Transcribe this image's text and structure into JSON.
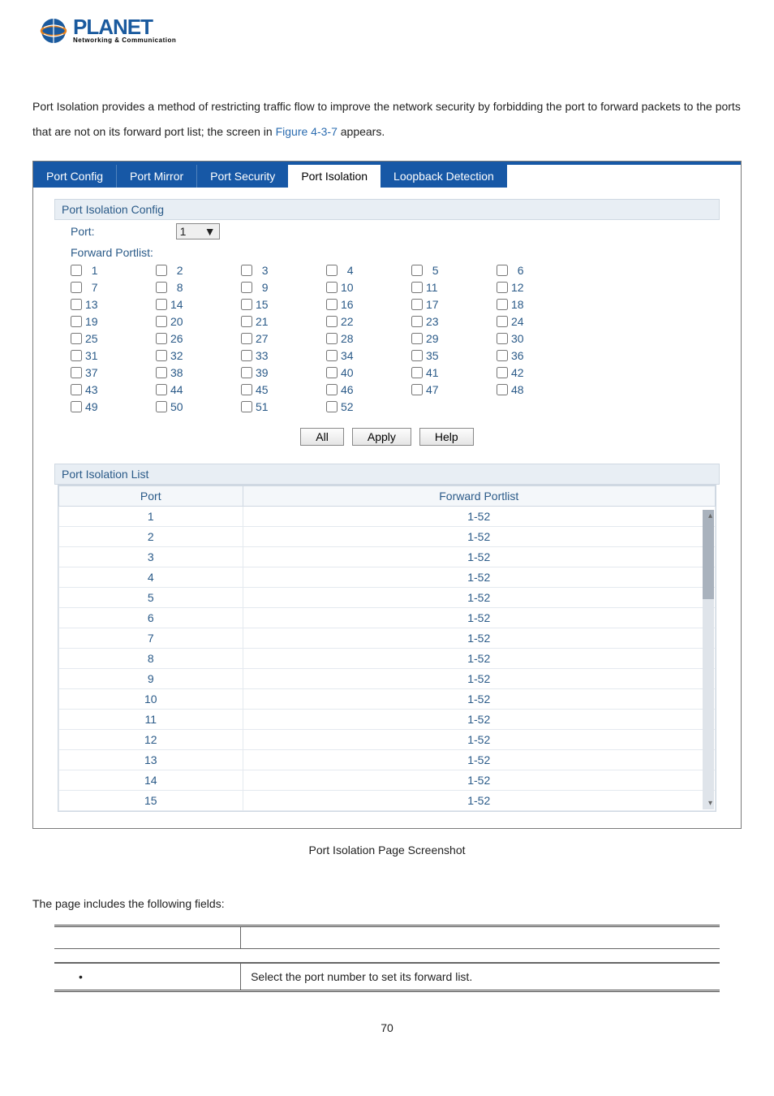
{
  "logo": {
    "title": "PLANET",
    "subtitle": "Networking & Communication"
  },
  "intro": {
    "text1": "Port Isolation provides a method of restricting traffic flow to improve the network security by forbidding the port to forward packets to the ports that are not on its forward port list; the screen in ",
    "figure": "Figure 4-3-7",
    "text2": " appears."
  },
  "tabs": {
    "items": [
      {
        "label": "Port Config",
        "active": false
      },
      {
        "label": "Port Mirror",
        "active": false
      },
      {
        "label": "Port Security",
        "active": false
      },
      {
        "label": "Port Isolation",
        "active": true
      },
      {
        "label": "Loopback Detection",
        "active": false
      }
    ]
  },
  "config": {
    "section_title": "Port Isolation Config",
    "port_label": "Port:",
    "port_value": "1",
    "forward_label": "Forward Portlist:",
    "port_count": 52,
    "buttons": {
      "all": "All",
      "apply": "Apply",
      "help": "Help"
    }
  },
  "list": {
    "section_title": "Port Isolation List",
    "headers": {
      "port": "Port",
      "fwd": "Forward Portlist"
    },
    "rows": [
      {
        "port": "1",
        "fwd": "1-52"
      },
      {
        "port": "2",
        "fwd": "1-52"
      },
      {
        "port": "3",
        "fwd": "1-52"
      },
      {
        "port": "4",
        "fwd": "1-52"
      },
      {
        "port": "5",
        "fwd": "1-52"
      },
      {
        "port": "6",
        "fwd": "1-52"
      },
      {
        "port": "7",
        "fwd": "1-52"
      },
      {
        "port": "8",
        "fwd": "1-52"
      },
      {
        "port": "9",
        "fwd": "1-52"
      },
      {
        "port": "10",
        "fwd": "1-52"
      },
      {
        "port": "11",
        "fwd": "1-52"
      },
      {
        "port": "12",
        "fwd": "1-52"
      },
      {
        "port": "13",
        "fwd": "1-52"
      },
      {
        "port": "14",
        "fwd": "1-52"
      },
      {
        "port": "15",
        "fwd": "1-52"
      }
    ]
  },
  "caption": "Port Isolation Page Screenshot",
  "fields_intro": "The page includes the following fields:",
  "fields_table": {
    "desc": "Select the port number to set its forward list."
  },
  "page_number": "70"
}
